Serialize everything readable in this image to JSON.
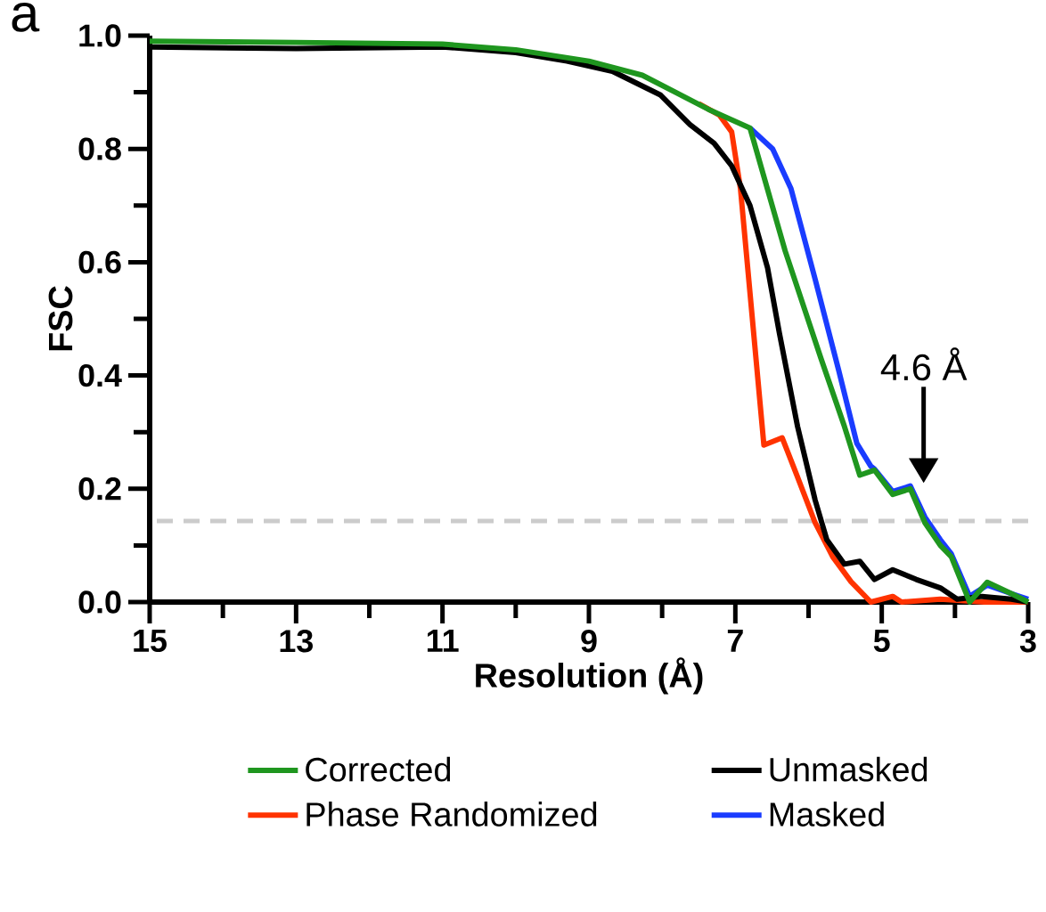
{
  "chart_data": {
    "type": "line",
    "xlabel": "Resolution (Å)",
    "ylabel": "FSC",
    "xlim": [
      15,
      3
    ],
    "xticks": [
      15,
      13,
      11,
      9,
      7,
      5,
      3
    ],
    "ylim": [
      0,
      1.0
    ],
    "yticks": [
      {
        "value": 0,
        "label": "0.0"
      },
      {
        "value": 0.2,
        "label": "0.2"
      },
      {
        "value": 0.4,
        "label": "0.4"
      },
      {
        "value": 0.6,
        "label": "0.6"
      },
      {
        "value": 0.8,
        "label": "0.8"
      },
      {
        "value": 1.0,
        "label": "1.0"
      }
    ],
    "legend": "bottom",
    "line_style": "solid",
    "ref_lines": [
      {
        "axis": "y",
        "value": 0.143,
        "color": "#cccccc",
        "line_style": "dashed"
      }
    ],
    "annotations": [
      "a",
      "4.6 Å"
    ],
    "series": [
      {
        "name": "Corrected",
        "color": "#1f961f",
        "x": [
          15,
          13,
          11,
          10,
          9,
          8.27,
          7.37,
          6.8,
          6.32,
          5.83,
          5.51,
          5.3,
          5.1,
          4.85,
          4.61,
          4.41,
          4.2,
          4.05,
          3.8,
          3.56,
          3.23,
          3.0
        ],
        "values": [
          0.99,
          0.988,
          0.985,
          0.975,
          0.955,
          0.93,
          0.87,
          0.837,
          0.62,
          0.43,
          0.31,
          0.224,
          0.233,
          0.19,
          0.2,
          0.14,
          0.1,
          0.08,
          0.0,
          0.035,
          0.015,
          0.0
        ]
      },
      {
        "name": "Unmasked",
        "color": "#000000",
        "x": [
          15,
          13,
          11,
          10,
          9.3,
          8.68,
          8.02,
          7.62,
          7.29,
          7.05,
          6.8,
          6.56,
          6.4,
          6.15,
          5.91,
          5.75,
          5.51,
          5.3,
          5.1,
          4.85,
          4.53,
          4.2,
          3.97,
          3.63,
          3.23,
          3.0
        ],
        "values": [
          0.98,
          0.977,
          0.98,
          0.97,
          0.955,
          0.937,
          0.895,
          0.843,
          0.81,
          0.77,
          0.7,
          0.59,
          0.476,
          0.31,
          0.18,
          0.11,
          0.067,
          0.072,
          0.04,
          0.057,
          0.04,
          0.025,
          0.005,
          0.01,
          0.005,
          0.0
        ]
      },
      {
        "name": "Phase Randomized",
        "color": "#ff3300",
        "x": [
          7.5,
          7.22,
          7.05,
          6.93,
          6.61,
          6.36,
          6.16,
          5.91,
          5.67,
          5.42,
          5.15,
          4.85,
          4.73,
          4.2,
          3.6,
          3.0
        ],
        "values": [
          0.88,
          0.86,
          0.83,
          0.73,
          0.277,
          0.29,
          0.224,
          0.14,
          0.08,
          0.036,
          0.0,
          0.01,
          0.0,
          0.005,
          0.0,
          0.0
        ]
      },
      {
        "name": "Masked",
        "color": "#1a3cff",
        "x": [
          6.8,
          6.49,
          6.24,
          5.91,
          5.59,
          5.34,
          5.15,
          5.1,
          4.85,
          4.61,
          4.41,
          4.2,
          4.05,
          3.8,
          3.56,
          3.23,
          3.0
        ],
        "values": [
          0.837,
          0.8,
          0.73,
          0.57,
          0.41,
          0.28,
          0.24,
          0.235,
          0.195,
          0.205,
          0.15,
          0.11,
          0.085,
          0.01,
          0.03,
          0.015,
          0.005
        ]
      }
    ]
  }
}
